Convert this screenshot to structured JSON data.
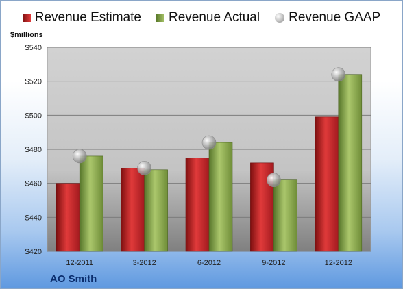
{
  "legend": {
    "estimate": "Revenue Estimate",
    "actual": "Revenue Actual",
    "gaap": "Revenue GAAP"
  },
  "unit_label": "$millions",
  "company": "AO Smith",
  "colors": {
    "estimate": "#c0272d",
    "actual": "#8aa64a",
    "gaap": "#b8b8b8"
  },
  "chart_data": {
    "type": "bar",
    "categories": [
      "12-2011",
      "3-2012",
      "6-2012",
      "9-2012",
      "12-2012"
    ],
    "series": [
      {
        "name": "Revenue Estimate",
        "values": [
          460,
          469,
          475,
          472,
          499
        ]
      },
      {
        "name": "Revenue Actual",
        "values": [
          476,
          468,
          484,
          462,
          524
        ]
      },
      {
        "name": "Revenue GAAP",
        "values": [
          476,
          469,
          484,
          462,
          524
        ]
      }
    ],
    "ylim": [
      420,
      540
    ],
    "yticks": [
      420,
      440,
      460,
      480,
      500,
      520,
      540
    ],
    "ytick_labels": [
      "$420",
      "$440",
      "$460",
      "$480",
      "$500",
      "$520",
      "$540"
    ],
    "ylabel": "$millions",
    "title": "",
    "xlabel": "",
    "grid": true,
    "legend_position": "top"
  }
}
